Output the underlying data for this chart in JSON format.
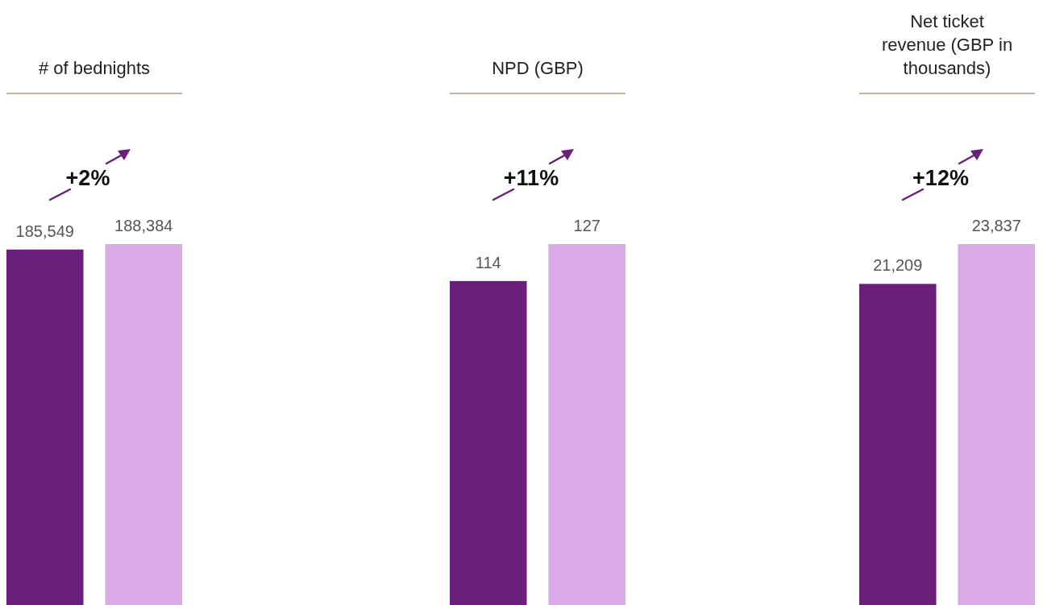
{
  "chart_data": [
    {
      "type": "bar",
      "title": "# of bednights",
      "categories": [
        null,
        null
      ],
      "values": [
        185549,
        188384
      ],
      "value_labels": [
        "185,549",
        "188,384"
      ],
      "colors": [
        "#6a1f7a",
        "#ddaae8"
      ],
      "annotations": [
        "+2%"
      ]
    },
    {
      "type": "bar",
      "title": "NPD (GBP)",
      "categories": [
        null,
        null
      ],
      "values": [
        114,
        127
      ],
      "value_labels": [
        "114",
        "127"
      ],
      "colors": [
        "#6a1f7a",
        "#ddaae8"
      ],
      "annotations": [
        "+11%"
      ]
    },
    {
      "type": "bar",
      "title": "Net ticket revenue (GBP in thousands)",
      "categories": [
        null,
        null
      ],
      "values": [
        21209,
        23837
      ],
      "value_labels": [
        "21,209",
        "23,837"
      ],
      "colors": [
        "#6a1f7a",
        "#ddaae8"
      ],
      "annotations": [
        "+12%"
      ]
    }
  ]
}
